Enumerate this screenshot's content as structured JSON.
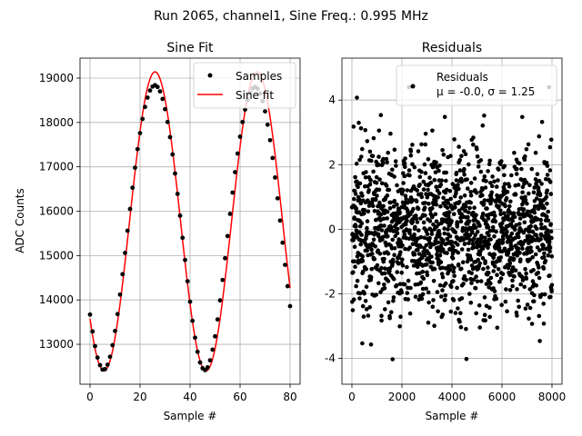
{
  "figure": {
    "suptitle": "Run 2065, channel1, Sine Freq.: 0.995 MHz"
  },
  "chart_data": [
    {
      "type": "line",
      "title": "Sine Fit",
      "xlabel": "Sample #",
      "ylabel": "ADC Counts",
      "xlim": [
        -4,
        84
      ],
      "ylim": [
        12100,
        19450
      ],
      "xticks": [
        0,
        20,
        40,
        60,
        80
      ],
      "yticks": [
        13000,
        14000,
        15000,
        16000,
        17000,
        18000,
        19000
      ],
      "grid": true,
      "legend_position": "top-right",
      "colors": {
        "samples": "#000000",
        "fit": "#ff0000"
      },
      "sine_model": {
        "amplitude": 3370,
        "offset": 15770,
        "period": 40.8,
        "peak_sample": 26.0
      },
      "x": [
        0,
        1,
        2,
        3,
        4,
        5,
        6,
        7,
        8,
        9,
        10,
        11,
        12,
        13,
        14,
        15,
        16,
        17,
        18,
        19,
        20,
        21,
        22,
        23,
        24,
        25,
        26,
        27,
        28,
        29,
        30,
        31,
        32,
        33,
        34,
        35,
        36,
        37,
        38,
        39,
        40,
        41,
        42,
        43,
        44,
        45,
        46,
        47,
        48,
        49,
        50,
        51,
        52,
        53,
        54,
        55,
        56,
        57,
        58,
        59,
        60,
        61,
        62,
        63,
        64,
        65,
        66,
        67,
        68,
        69,
        70,
        71,
        72,
        73,
        74,
        75,
        76,
        77,
        78,
        79,
        80
      ],
      "series": [
        {
          "name": "Samples",
          "style": "markers",
          "values": [
            13670,
            13290,
            12960,
            12700,
            12530,
            12430,
            12440,
            12540,
            12720,
            12980,
            13300,
            13680,
            14120,
            14580,
            15060,
            15560,
            16050,
            16530,
            16980,
            17400,
            17760,
            18080,
            18350,
            18560,
            18720,
            18810,
            18840,
            18800,
            18700,
            18530,
            18300,
            18010,
            17670,
            17280,
            16850,
            16390,
            15900,
            15400,
            14900,
            14420,
            13960,
            13530,
            13150,
            12830,
            12590,
            12460,
            12420,
            12480,
            12640,
            12880,
            13180,
            13560,
            13990,
            14450,
            14940,
            15440,
            15940,
            16420,
            16880,
            17300,
            17680,
            18010,
            18290,
            18510,
            18670,
            18770,
            18800,
            18760,
            18650,
            18480,
            18250,
            17950,
            17600,
            17200,
            16760,
            16290,
            15790,
            15290,
            14790,
            14310,
            13860
          ]
        },
        {
          "name": "Sine fit",
          "style": "line"
        }
      ]
    },
    {
      "type": "scatter",
      "title": "Residuals",
      "xlabel": "Sample #",
      "ylabel": "",
      "xlim": [
        -400,
        8400
      ],
      "ylim": [
        -4.8,
        5.3
      ],
      "xticks": [
        0,
        2000,
        4000,
        6000,
        8000
      ],
      "yticks": [
        -4,
        -2,
        0,
        2,
        4
      ],
      "grid": true,
      "legend_position": "top-right",
      "n_points": 8000,
      "mean": -0.0,
      "std": 1.25,
      "series": [
        {
          "name": "Residuals",
          "stats_label": "μ = -0.0, σ = 1.25",
          "color": "#000000"
        }
      ]
    }
  ]
}
